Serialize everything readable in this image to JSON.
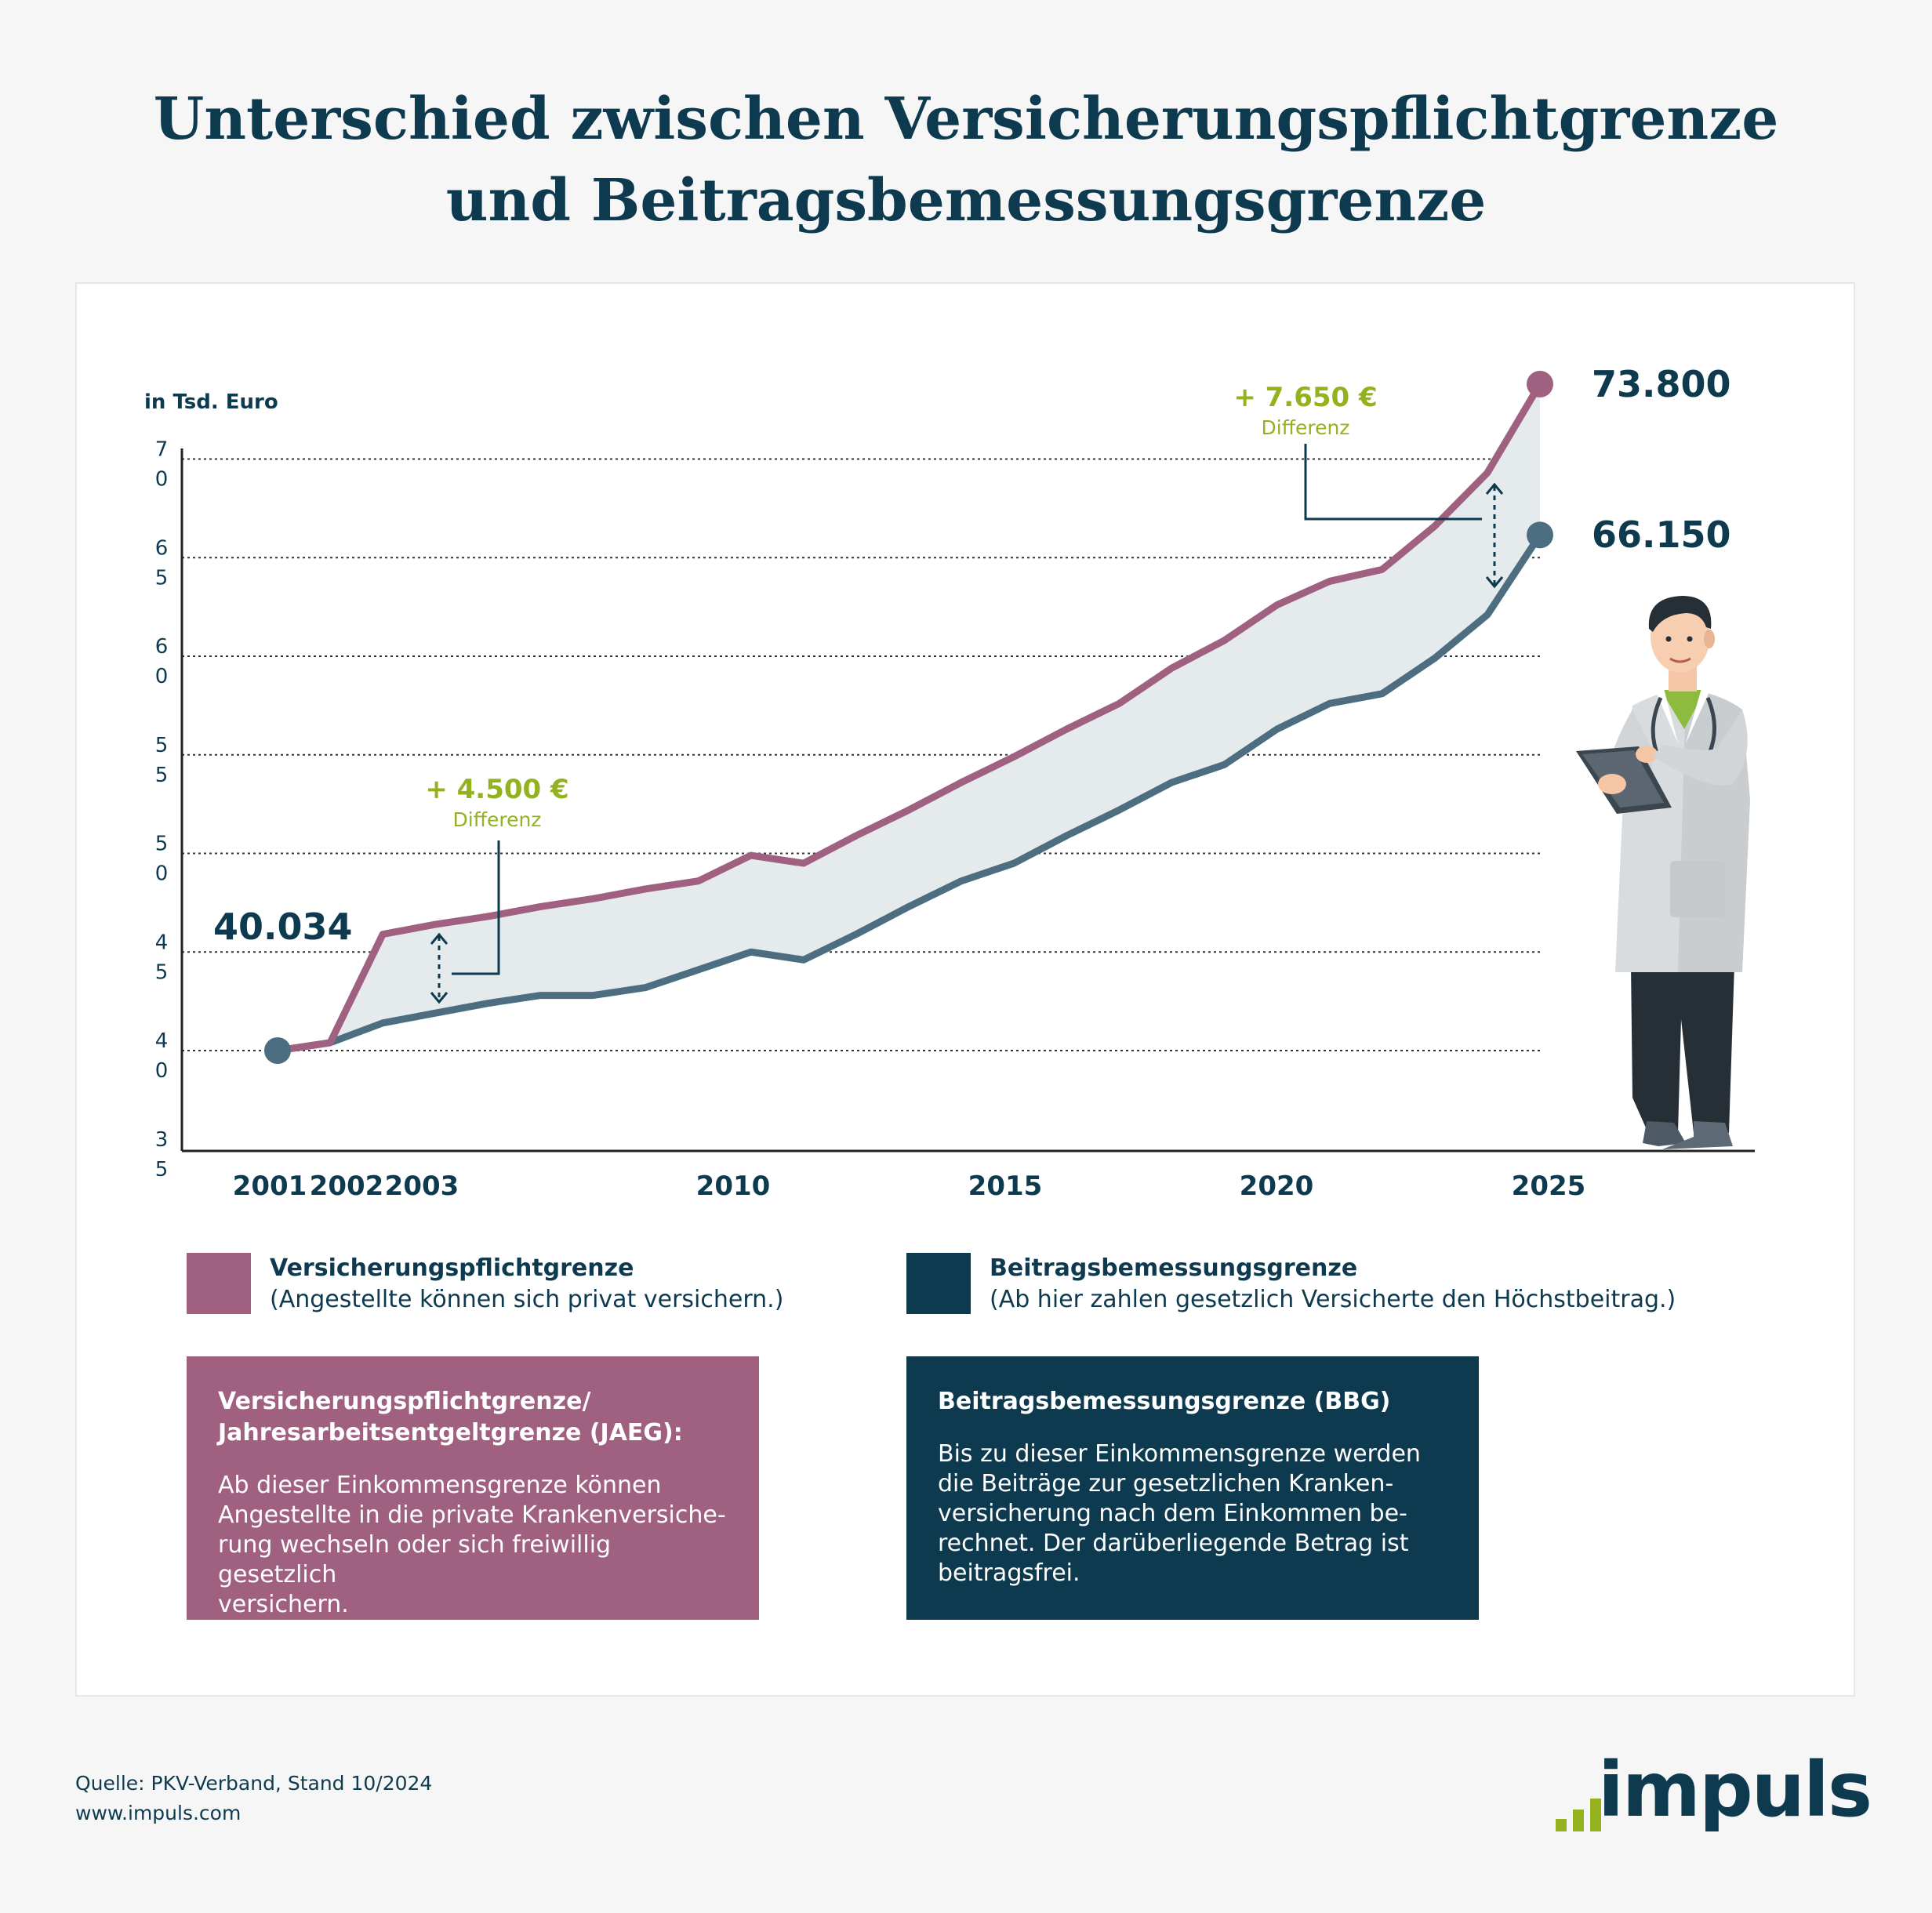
{
  "title": {
    "line1": "Unterschied zwischen Versicherungspflichtgrenze",
    "line2": "und Beitragsbemessungsgrenze"
  },
  "chart_data": {
    "type": "line",
    "ylabel": "in Tsd. Euro",
    "y_ticks": [
      {
        "value": 70,
        "line1": "7",
        "line2": "0"
      },
      {
        "value": 65,
        "line1": "6",
        "line2": "5"
      },
      {
        "value": 60,
        "line1": "6",
        "line2": "0"
      },
      {
        "value": 55,
        "line1": "5",
        "line2": "5"
      },
      {
        "value": 50,
        "line1": "5",
        "line2": "0"
      },
      {
        "value": 45,
        "line1": "4",
        "line2": "5"
      },
      {
        "value": 40,
        "line1": "4",
        "line2": "0"
      },
      {
        "value": 35,
        "line1": "3",
        "line2": "5"
      }
    ],
    "ylim": [
      35,
      73.8
    ],
    "grid": "dotted horizontal",
    "x_ticks": [
      "2001",
      "2002",
      "2003",
      "2010",
      "2015",
      "2020",
      "2025"
    ],
    "x": [
      2001,
      2002,
      2003,
      2004,
      2005,
      2006,
      2007,
      2008,
      2009,
      2010,
      2011,
      2012,
      2013,
      2014,
      2015,
      2016,
      2017,
      2018,
      2019,
      2020,
      2021,
      2022,
      2023,
      2024,
      2025
    ],
    "series": [
      {
        "name": "Versicherungspflichtgrenze",
        "color": "#a06080",
        "values": [
          40.0,
          40.4,
          45.9,
          46.4,
          46.8,
          47.3,
          47.7,
          48.2,
          48.6,
          49.9,
          49.5,
          50.9,
          52.2,
          53.6,
          54.9,
          56.3,
          57.6,
          59.4,
          60.8,
          62.6,
          63.8,
          64.4,
          66.6,
          69.3,
          73.8
        ]
      },
      {
        "name": "Beitragsbemessungsgrenze",
        "color": "#4d6e80",
        "values": [
          40.0,
          40.4,
          41.4,
          41.9,
          42.4,
          42.8,
          42.8,
          43.2,
          44.1,
          45.0,
          44.6,
          45.9,
          47.3,
          48.6,
          49.5,
          50.9,
          52.2,
          53.6,
          54.5,
          56.3,
          57.6,
          58.1,
          59.9,
          62.1,
          66.15
        ]
      }
    ],
    "labels": {
      "start": "40.034",
      "end_vpg": "73.800",
      "end_bbg": "66.150"
    },
    "annotations": [
      {
        "value": "+ 4.500 €",
        "label": "Differenz",
        "year": 2003
      },
      {
        "value": "+ 7.650 €",
        "label": "Differenz",
        "year": 2024
      }
    ],
    "legend": [
      {
        "title": "Versicherungspflichtgrenze",
        "desc": "(Angestellte können sich privat versichern.)",
        "color": "#a06080"
      },
      {
        "title": "Beitragsbemessungsgrenze",
        "desc": "(Ab hier zahlen gesetzlich Versicherte den Höchstbeitrag.)",
        "color": "#0e3a50"
      }
    ]
  },
  "info_boxes": [
    {
      "title": "Versicherungspflichtgrenze/\nJahresarbeitsentgeltgrenze (JAEG):",
      "body": "Ab dieser Einkommensgrenze können\nAngestellte in die private Krankenversiche-\nrung wechseln oder sich freiwillig gesetzlich\nversichern.",
      "color": "#a06080"
    },
    {
      "title": "Beitragsbemessungsgrenze (BBG)",
      "body": "Bis zu dieser Einkommensgrenze werden\ndie Beiträge zur gesetzlichen Kranken-\nversicherung nach dem Einkommen be-\nrechnet. Der darüberliegende Betrag ist\nbeitragsfrei.",
      "color": "#0e3a50"
    }
  ],
  "footer": {
    "source": "Quelle: PKV-Verband, Stand 10/2024",
    "url": "www.impuls.com",
    "logo": "impuls"
  },
  "colors": {
    "accent_green": "#93b21e",
    "navy": "#0e3a50",
    "fill_between": "#e5eaed"
  },
  "illustration": "doctor-with-clipboard"
}
